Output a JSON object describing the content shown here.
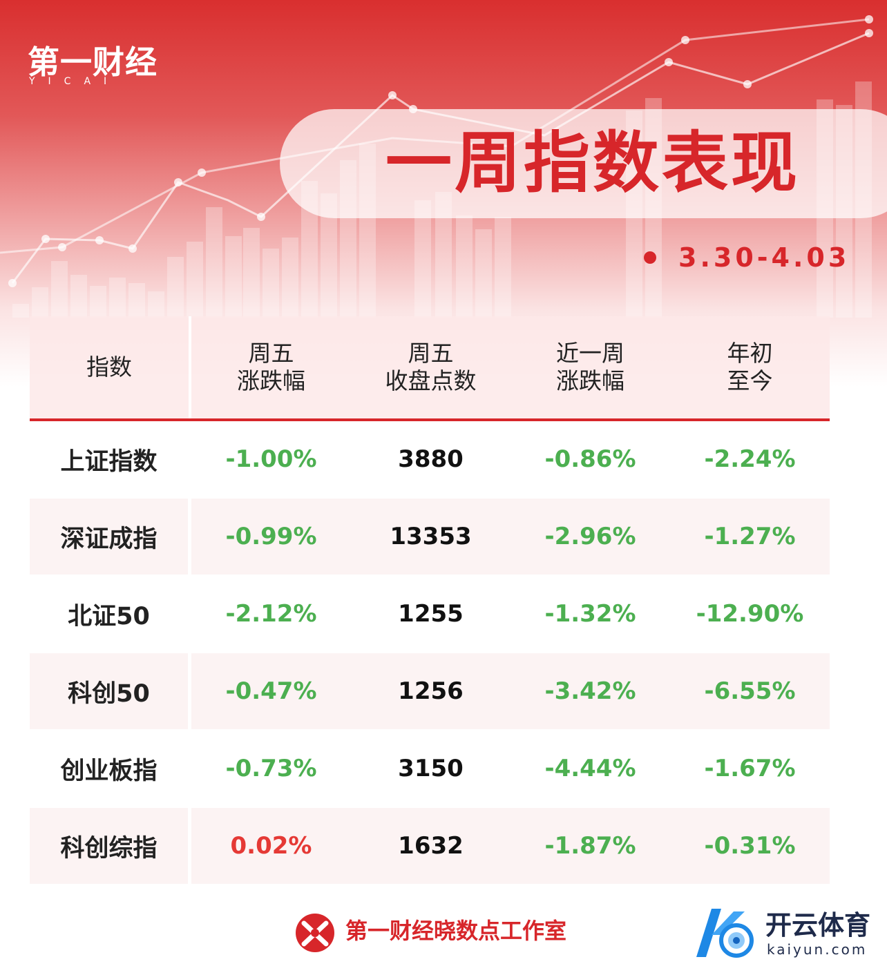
{
  "brand": {
    "name_cn": "第一财经",
    "name_en": "YICAI"
  },
  "title": "一周指数表现",
  "date_range": "3.30-4.03",
  "table": {
    "headers": [
      {
        "line1": "指数",
        "line2": ""
      },
      {
        "line1": "周五",
        "line2": "涨跌幅"
      },
      {
        "line1": "周五",
        "line2": "收盘点数"
      },
      {
        "line1": "近一周",
        "line2": "涨跌幅"
      },
      {
        "line1": "年初",
        "line2": "至今"
      }
    ],
    "rows": [
      {
        "name": "上证指数",
        "fri_change": "-1.00%",
        "fri_close": "3880",
        "week_change": "-0.86%",
        "ytd": "-2.24%"
      },
      {
        "name": "深证成指",
        "fri_change": "-0.99%",
        "fri_close": "13353",
        "week_change": "-2.96%",
        "ytd": "-1.27%"
      },
      {
        "name": "北证50",
        "fri_change": "-2.12%",
        "fri_close": "1255",
        "week_change": "-1.32%",
        "ytd": "-12.90%"
      },
      {
        "name": "科创50",
        "fri_change": "-0.47%",
        "fri_close": "1256",
        "week_change": "-3.42%",
        "ytd": "-6.55%"
      },
      {
        "name": "创业板指",
        "fri_change": "-0.73%",
        "fri_close": "3150",
        "week_change": "-4.44%",
        "ytd": "-1.67%"
      },
      {
        "name": "科创综指",
        "fri_change": "0.02%",
        "fri_close": "1632",
        "week_change": "-1.87%",
        "ytd": "-0.31%"
      }
    ]
  },
  "footer": {
    "studio": "第一财经晓数点工作室",
    "partner_cn": "开云体育",
    "partner_url": "kaiyun.com"
  },
  "colors": {
    "accent": "#d7262a",
    "down": "#4caf50",
    "up": "#e53935"
  },
  "icons": {
    "studio_logo": "yicai-studio-logo-icon",
    "partner_logo": "kaiyun-k-logo-icon"
  }
}
